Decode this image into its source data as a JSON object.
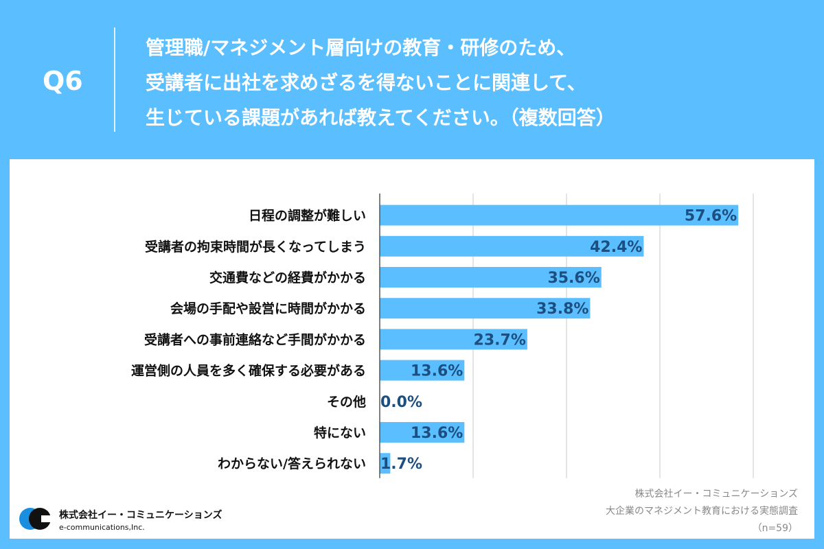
{
  "header": {
    "question_no": "Q6",
    "title_lines": [
      "管理職/マネジメント層向けの教育・研修のため、",
      "受講者に出社を求めざるを得ないことに関連して、",
      "生じている課題があれば教えてください。（複数回答）"
    ]
  },
  "colors": {
    "background": "#5bbfff",
    "bar": "#5bbfff",
    "value_text": "#1c4f80"
  },
  "chart_data": {
    "type": "bar",
    "orientation": "horizontal",
    "categories": [
      "日程の調整が難しい",
      "受講者の拘束時間が長くなってしまう",
      "交通費などの経費がかかる",
      "会場の手配や設営に時間がかかる",
      "受講者への事前連絡など手間がかかる",
      "運営側の人員を多く確保する必要がある",
      "その他",
      "特にない",
      "わからない/答えられない"
    ],
    "values": [
      57.6,
      42.4,
      35.6,
      33.8,
      23.7,
      13.6,
      0.0,
      13.6,
      1.7
    ],
    "value_labels": [
      "57.6%",
      "42.4%",
      "35.6%",
      "33.8%",
      "23.7%",
      "13.6%",
      "0.0%",
      "13.6%",
      "1.7%"
    ],
    "xlim": [
      0,
      60
    ],
    "grid": true,
    "grid_step": 15,
    "unit": "%"
  },
  "source": {
    "lines": [
      "株式会社イー・コミュニケーションズ",
      "大企業のマネジメント教育における実態調査",
      "（n=59）"
    ]
  },
  "logo": {
    "name": "株式会社イー・コミュニケーションズ",
    "name_en": "e-communications,Inc.",
    "mark_text": "e-communications"
  }
}
